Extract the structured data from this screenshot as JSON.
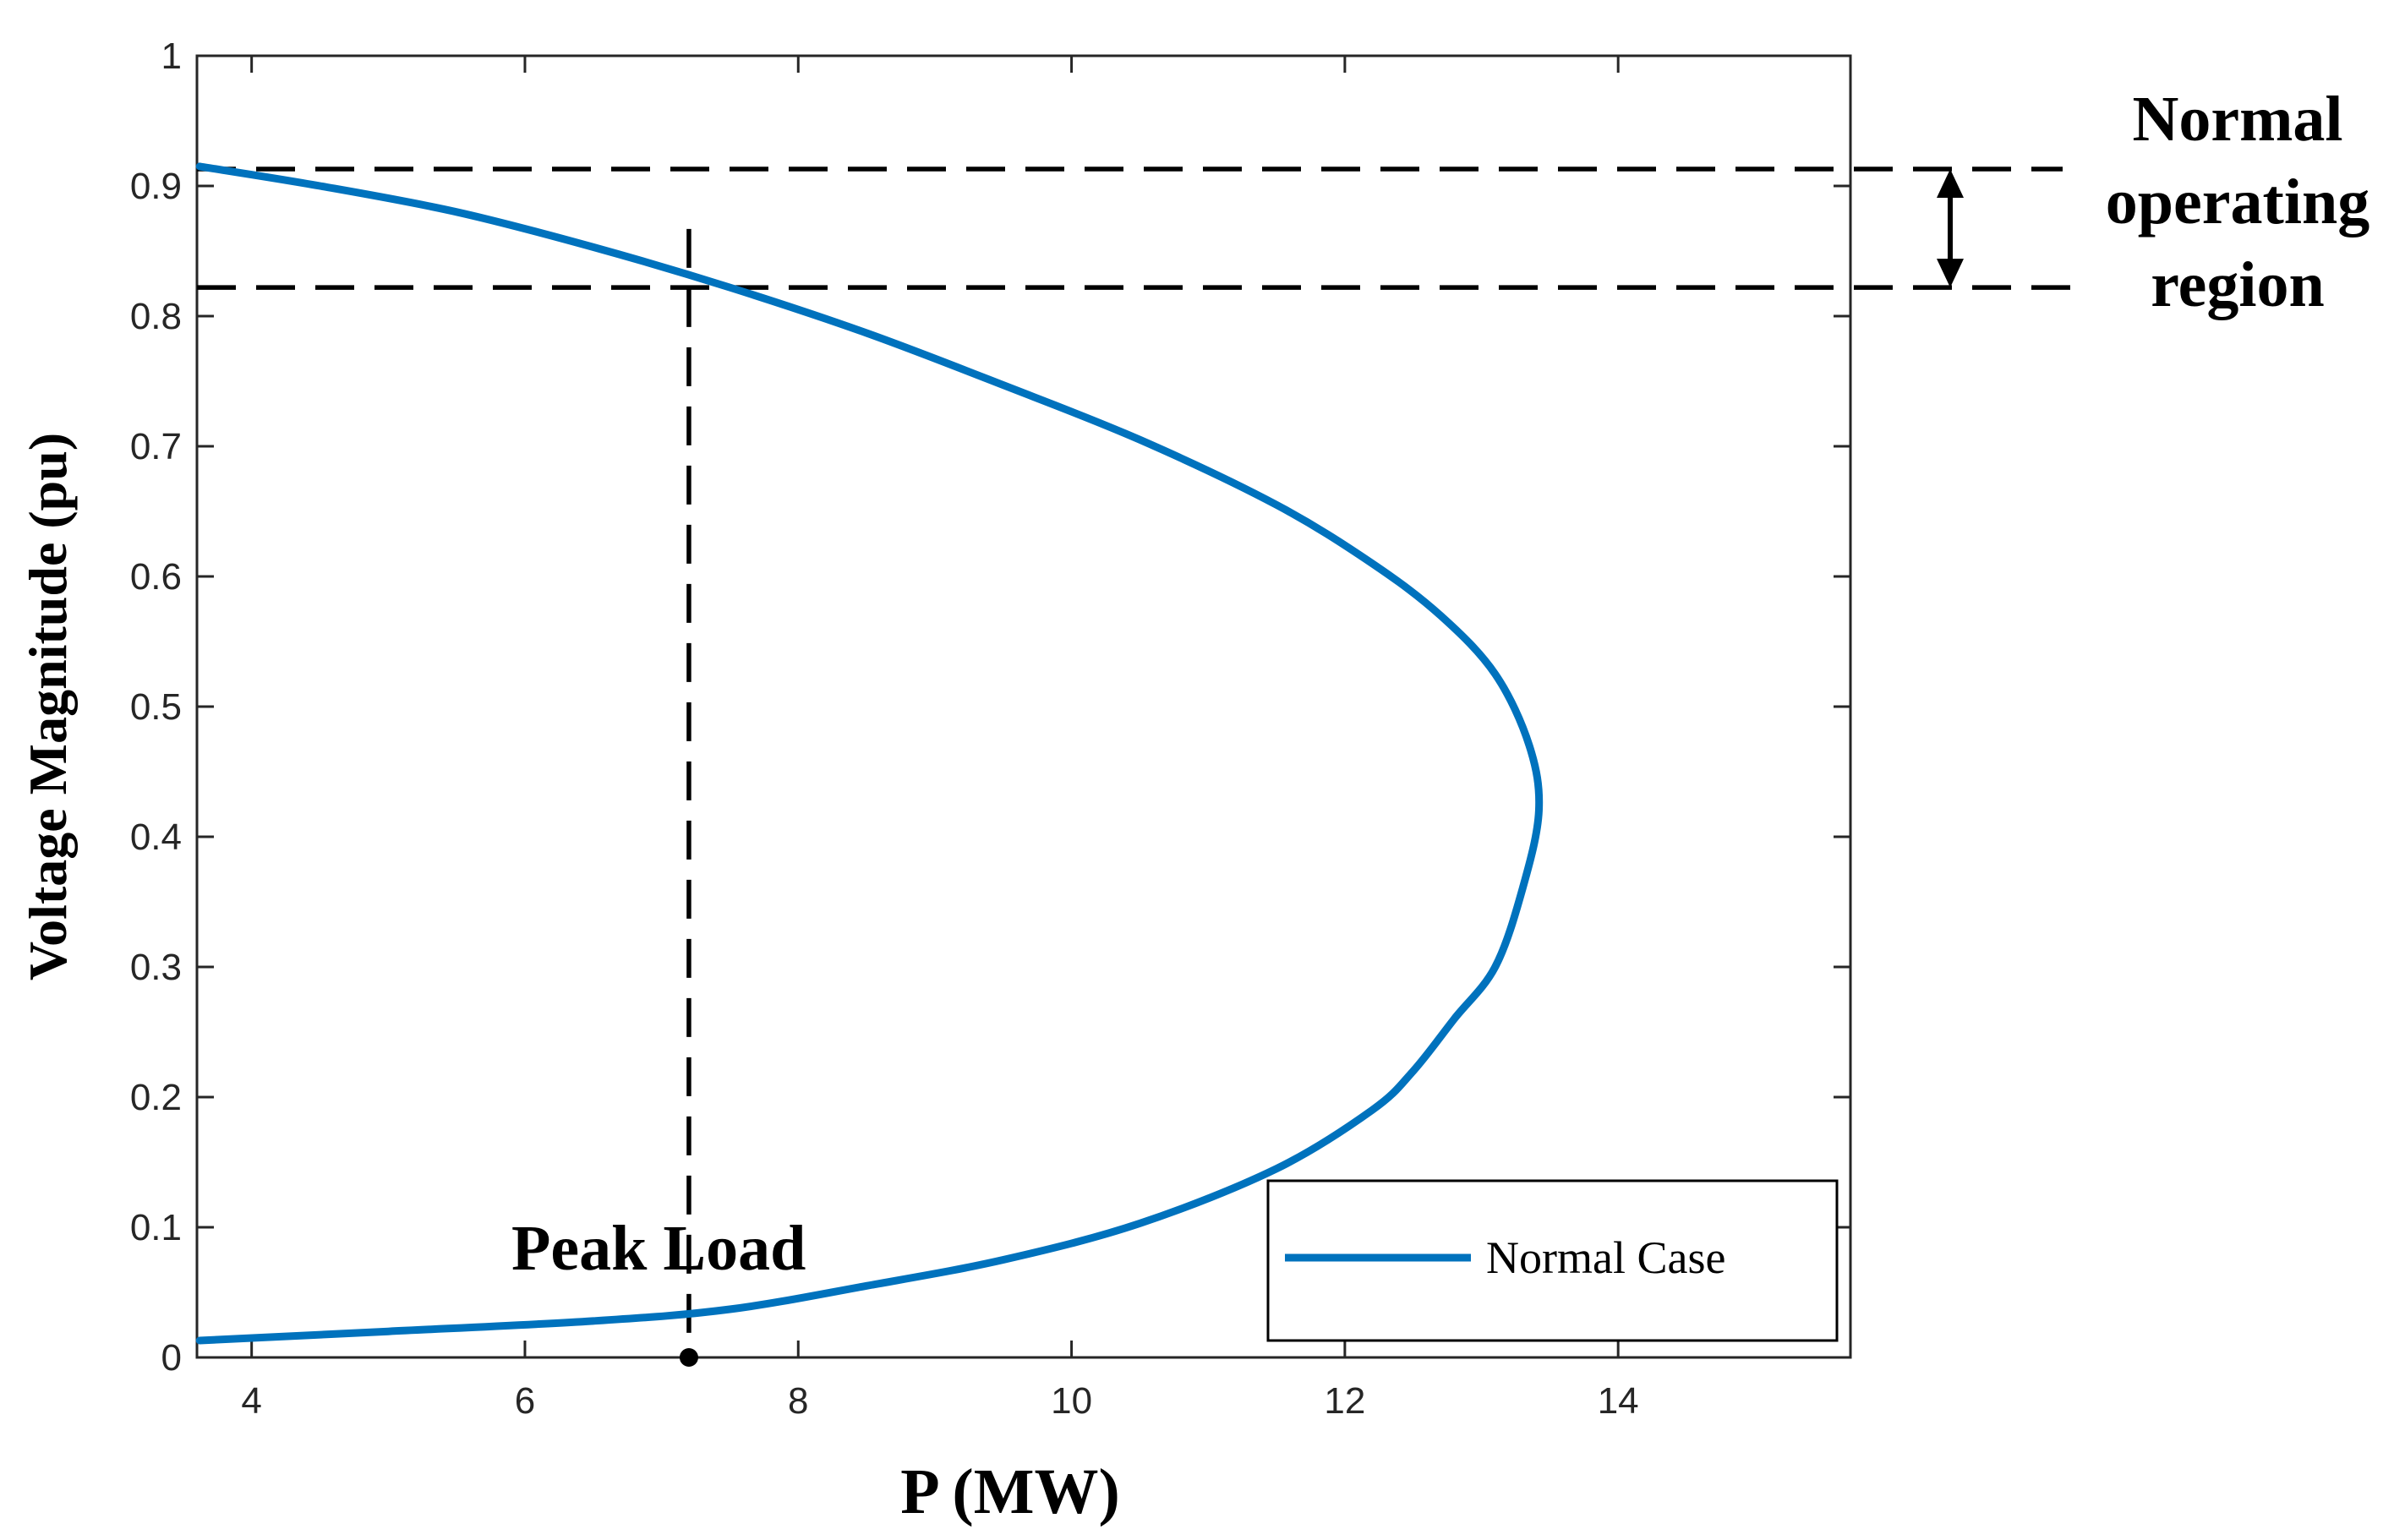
{
  "chart_data": {
    "type": "line",
    "title": "",
    "xlabel": "P (MW)",
    "ylabel": "Voltage Magnitude (pu)",
    "xlim": [
      3.6,
      15.7
    ],
    "ylim": [
      0,
      1
    ],
    "xticks": [
      4,
      6,
      8,
      10,
      12,
      14
    ],
    "xtick_labels": [
      "4",
      "6",
      "8",
      "10",
      "12",
      "14"
    ],
    "yticks": [
      0,
      0.1,
      0.2,
      0.3,
      0.4,
      0.5,
      0.6,
      0.7,
      0.8,
      0.9,
      1
    ],
    "ytick_labels": [
      "0",
      "0.1",
      "0.2",
      "0.3",
      "0.4",
      "0.5",
      "0.6",
      "0.7",
      "0.8",
      "0.9",
      "1"
    ],
    "grid": false,
    "legend_position": "bottom-right",
    "series": [
      {
        "name": "Normal Case",
        "color": "#0072BD",
        "points": [
          [
            3.62,
            0.013
          ],
          [
            5.0,
            0.02
          ],
          [
            6.5,
            0.028
          ],
          [
            7.5,
            0.037
          ],
          [
            8.5,
            0.055
          ],
          [
            9.5,
            0.075
          ],
          [
            10.5,
            0.103
          ],
          [
            11.5,
            0.145
          ],
          [
            12.2,
            0.19
          ],
          [
            12.5,
            0.22
          ],
          [
            12.8,
            0.26
          ],
          [
            13.1,
            0.3
          ],
          [
            13.3,
            0.36
          ],
          [
            13.42,
            0.42
          ],
          [
            13.35,
            0.47
          ],
          [
            13.1,
            0.525
          ],
          [
            12.7,
            0.57
          ],
          [
            12.2,
            0.61
          ],
          [
            11.5,
            0.655
          ],
          [
            10.5,
            0.705
          ],
          [
            9.5,
            0.747
          ],
          [
            8.5,
            0.787
          ],
          [
            7.5,
            0.822
          ],
          [
            6.5,
            0.853
          ],
          [
            5.5,
            0.88
          ],
          [
            4.5,
            0.9
          ],
          [
            3.62,
            0.915
          ]
        ]
      }
    ],
    "reference_lines": {
      "color": "#000000",
      "upper_voltage": 0.913,
      "lower_voltage": 0.822,
      "peak_load_p": 7.2,
      "peak_load_top_voltage": 0.867
    },
    "annotations": {
      "peak_load_label": "Peak Load",
      "region_label_lines": [
        "Normal",
        "operating",
        "region"
      ]
    }
  }
}
